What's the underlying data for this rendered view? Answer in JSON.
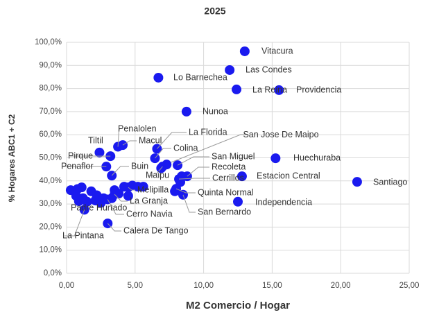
{
  "chart_data": {
    "type": "scatter",
    "title": "2025",
    "x_label": "M2 Comercio / Hogar",
    "y_label": "% Hogares ABC1 + C2",
    "color": "#1a1aef",
    "grid": true,
    "xlim": [
      0,
      25
    ],
    "ylim": [
      0,
      100
    ],
    "xticks": [
      {
        "value": 0,
        "label": "0,00"
      },
      {
        "value": 5,
        "label": "5,00"
      },
      {
        "value": 10,
        "label": "10,00"
      },
      {
        "value": 15,
        "label": "15,00"
      },
      {
        "value": 20,
        "label": "20,00"
      },
      {
        "value": 25,
        "label": "25,00"
      }
    ],
    "yticks": [
      {
        "value": 0,
        "label": "0,0%"
      },
      {
        "value": 10,
        "label": "10,0%"
      },
      {
        "value": 20,
        "label": "20,0%"
      },
      {
        "value": 30,
        "label": "30,0%"
      },
      {
        "value": 40,
        "label": "40,0%"
      },
      {
        "value": 50,
        "label": "50,0%"
      },
      {
        "value": 60,
        "label": "60,0%"
      },
      {
        "value": 70,
        "label": "70,0%"
      },
      {
        "value": 80,
        "label": "80,0%"
      },
      {
        "value": 90,
        "label": "90,0%"
      },
      {
        "value": 100,
        "label": "100,0%"
      }
    ],
    "x": [
      13.0,
      11.9,
      6.7,
      12.4,
      15.5,
      8.75,
      3.75,
      4.1,
      6.6,
      2.4,
      3.2,
      6.45,
      7.3,
      15.25,
      8.1,
      2.9,
      3.3,
      8.8,
      7.0,
      12.8,
      21.2,
      8.2,
      8.0,
      12.5,
      8.5,
      4.5,
      3.5,
      0.9,
      3.0,
      1.3,
      3.0,
      0.3,
      0.8,
      1.1,
      0.7,
      1.2,
      1.8,
      2.2,
      2.7,
      2.5,
      3.3,
      3.5,
      4.2,
      4.8,
      5.2,
      5.6,
      4.5,
      3.8,
      1.5,
      2.1,
      6.9,
      8.4,
      8.3,
      7.9
    ],
    "y": [
      96.1,
      88.0,
      84.7,
      79.6,
      79.3,
      70.0,
      54.8,
      55.5,
      53.9,
      52.3,
      50.7,
      49.8,
      47.1,
      49.8,
      46.8,
      46.2,
      42.3,
      42.0,
      46.2,
      42.0,
      39.6,
      40.8,
      36.6,
      31.0,
      34.0,
      37.2,
      34.2,
      31.2,
      32.0,
      27.5,
      21.6,
      36.0,
      36.5,
      37.2,
      33.5,
      32.5,
      35.5,
      33.8,
      32.5,
      30.5,
      32.5,
      36.0,
      37.5,
      38.0,
      37.5,
      37.5,
      33.5,
      34.5,
      31.0,
      31.5,
      45.5,
      42.0,
      39.5,
      35.5
    ],
    "labels": [
      "Vitacura",
      "Las Condes",
      "Lo Barnechea",
      "La Reina",
      "Providencia",
      "Nunoa",
      "Penalolen",
      "Macul",
      "La Florida",
      "Tiltil",
      "Pirque",
      "Colina",
      "San Jose De Maipo",
      "Huechuraba",
      "San Miguel",
      "Penaflor",
      "Buin",
      "Recoleta",
      "Maipu",
      "Estacion Central",
      "Santiago",
      "Cerrillos",
      "Quinta Normal",
      "Independencia",
      "San Bernardo",
      "Melipilla",
      "La Granja",
      "Padre Hurtado",
      "Cerro Navia",
      "La Pintana",
      "Calera De Tango",
      null,
      null,
      null,
      null,
      null,
      null,
      null,
      null,
      null,
      null,
      null,
      null,
      null,
      null,
      null,
      null,
      null,
      null,
      null,
      null,
      null,
      null,
      null
    ]
  }
}
